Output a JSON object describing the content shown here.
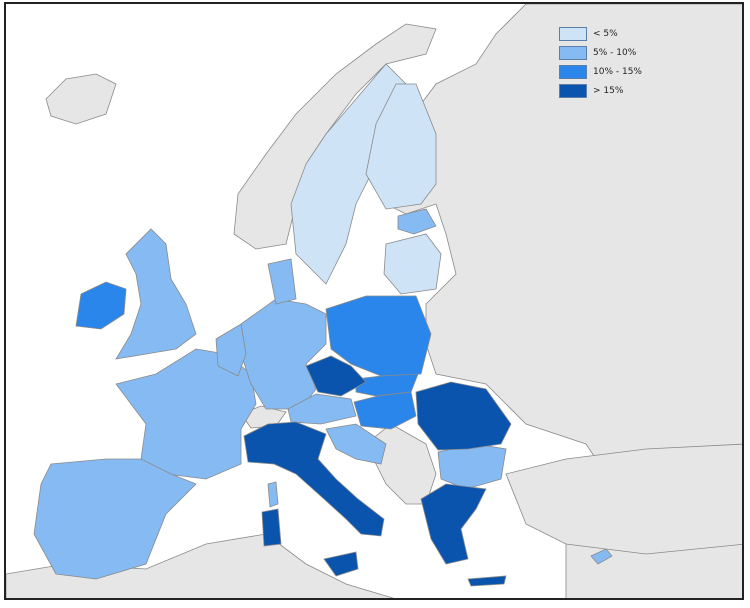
{
  "map": {
    "colors": {
      "sea": "#ffffff",
      "non_eu": "#e6e6e6",
      "border": "#8a8a8a",
      "under5": "#cfe3f7",
      "p5_10": "#86baf3",
      "p10_15": "#2b86eb",
      "over15": "#0a54ad"
    }
  },
  "legend": {
    "items": [
      {
        "label": "< 5%",
        "color": "#cfe3f7"
      },
      {
        "label": "5% - 10%",
        "color": "#86baf3"
      },
      {
        "label": "10% - 15%",
        "color": "#2b86eb"
      },
      {
        "label": "> 15%",
        "color": "#0a54ad"
      }
    ]
  }
}
